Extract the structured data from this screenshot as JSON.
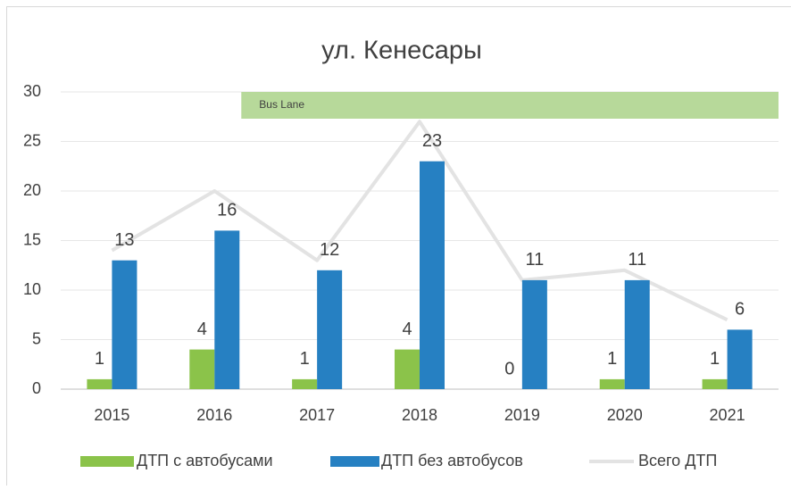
{
  "chart_data": {
    "type": "bar",
    "title": "ул. Кенесары",
    "categories": [
      "2015",
      "2016",
      "2017",
      "2018",
      "2019",
      "2020",
      "2021"
    ],
    "series": [
      {
        "name": "ДТП с автобусами",
        "color": "#8bc34a",
        "values": [
          1,
          4,
          1,
          4,
          0,
          1,
          1
        ]
      },
      {
        "name": "ДТП без автобусов",
        "color": "#2680c2",
        "values": [
          13,
          16,
          12,
          23,
          11,
          11,
          6
        ]
      },
      {
        "name": "Всего ДТП",
        "type": "line",
        "color": "#e3e3e3",
        "values": [
          14,
          20,
          13,
          27,
          11,
          12,
          7
        ]
      }
    ],
    "annotations": [
      "Bus Lane"
    ],
    "ylim": [
      0,
      30
    ],
    "yticks": [
      0,
      5,
      10,
      15,
      20,
      25,
      30
    ],
    "grid": true,
    "legend": "bottom"
  }
}
